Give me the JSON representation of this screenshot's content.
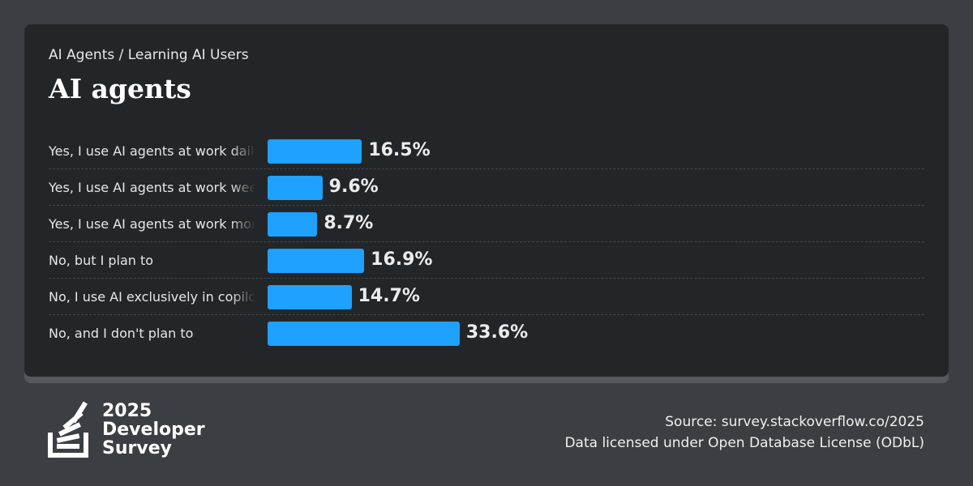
{
  "header": {
    "breadcrumb": "AI Agents / Learning AI Users",
    "title": "AI agents"
  },
  "chart_data": {
    "type": "bar",
    "orientation": "horizontal",
    "categories": [
      "Yes, I use AI agents at work daily",
      "Yes, I use AI agents at work weekly",
      "Yes, I use AI agents at work monthly or infrequently",
      "No, but I plan to",
      "No, I use AI exclusively in copilot/autocomplete mode",
      "No, and I don't plan to"
    ],
    "values": [
      16.5,
      9.6,
      8.7,
      16.9,
      14.7,
      33.6
    ],
    "value_labels": [
      "16.5%",
      "9.6%",
      "8.7%",
      "16.9%",
      "14.7%",
      "33.6%"
    ],
    "bar_color": "#1ea1ff",
    "xlim": [
      0,
      100
    ]
  },
  "logo": {
    "line1": "2025",
    "line2": "Developer",
    "line3": "Survey"
  },
  "footer": {
    "source": "Source: survey.stackoverflow.co/2025",
    "license": "Data licensed under Open Database License (ODbL)"
  }
}
